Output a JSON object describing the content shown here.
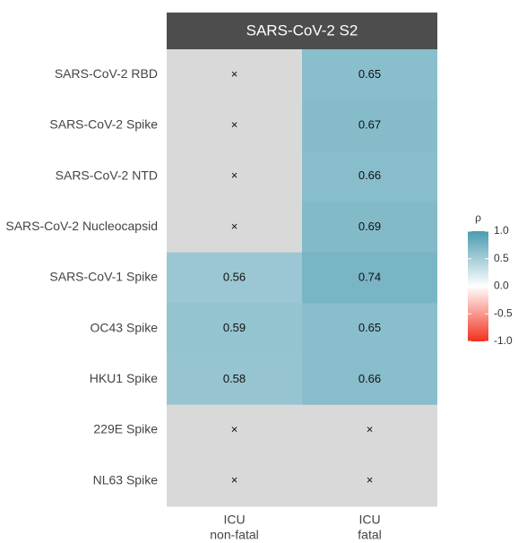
{
  "chart_data": {
    "type": "heatmap",
    "title": "SARS-CoV-2 S2",
    "rows": [
      "SARS-CoV-2 RBD",
      "SARS-CoV-2 Spike",
      "SARS-CoV-2 NTD",
      "SARS-CoV-2 Nucleocapsid",
      "SARS-CoV-1 Spike",
      "OC43 Spike",
      "HKU1 Spike",
      "229E Spike",
      "NL63 Spike"
    ],
    "columns": [
      [
        "ICU",
        "non-fatal"
      ],
      [
        "ICU",
        "fatal"
      ]
    ],
    "values": [
      [
        null,
        0.65
      ],
      [
        null,
        0.67
      ],
      [
        null,
        0.66
      ],
      [
        null,
        0.69
      ],
      [
        0.56,
        0.74
      ],
      [
        0.59,
        0.65
      ],
      [
        0.58,
        0.66
      ],
      [
        null,
        null
      ],
      [
        null,
        null
      ]
    ],
    "nonsig_label": "×",
    "legend_title": "ρ",
    "clim": [
      -1,
      1
    ],
    "cticks": [
      {
        "value": 1,
        "label": "1.0"
      },
      0.5,
      {
        "value": 0,
        "label": "0.0"
      },
      -0.5,
      {
        "value": -1,
        "label": "-1.0"
      }
    ],
    "low_color": "#f2301c",
    "mid_color": "#ffffff",
    "high_color": "#4a9bb0",
    "na_color": "#d9d9d9",
    "strip_color": "#4d4d4d"
  }
}
